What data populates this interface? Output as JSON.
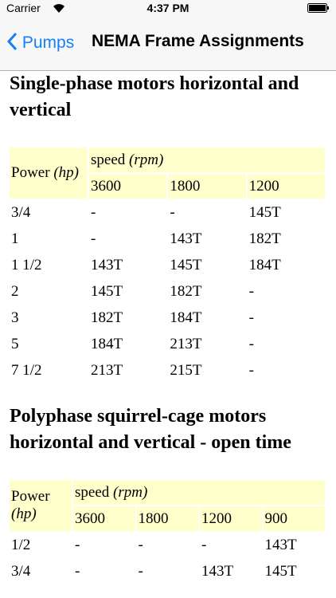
{
  "status_bar": {
    "carrier": "Carrier",
    "time": "4:37 PM"
  },
  "nav": {
    "back": "Pumps",
    "title": "NEMA Frame Assignments"
  },
  "sections": [
    {
      "heading": "Single-phase motors horizontal and vertical",
      "table": {
        "power_label": "Power",
        "power_unit": "(hp)",
        "speed_label": "speed",
        "speed_unit": "(rpm)",
        "speeds": [
          "3600",
          "1800",
          "1200"
        ],
        "rows": [
          [
            "3/4",
            "-",
            "-",
            "145T"
          ],
          [
            "1",
            "-",
            "143T",
            "182T"
          ],
          [
            "1 1/2",
            "143T",
            "145T",
            "184T"
          ],
          [
            "2",
            "145T",
            "182T",
            "-"
          ],
          [
            "3",
            "182T",
            "184T",
            "-"
          ],
          [
            "5",
            "184T",
            "213T",
            "-"
          ],
          [
            "7 1/2",
            "213T",
            "215T",
            "-"
          ]
        ]
      }
    },
    {
      "heading": "Polyphase squirrel-cage motors horizontal and vertical - open time",
      "table": {
        "power_label": "Power",
        "power_unit": "(hp)",
        "speed_label": "speed",
        "speed_unit": "(rpm)",
        "speeds": [
          "3600",
          "1800",
          "1200",
          "900"
        ],
        "rows": [
          [
            "1/2",
            "-",
            "-",
            "-",
            "143T"
          ],
          [
            "3/4",
            "-",
            "-",
            "143T",
            "145T"
          ]
        ]
      }
    }
  ]
}
